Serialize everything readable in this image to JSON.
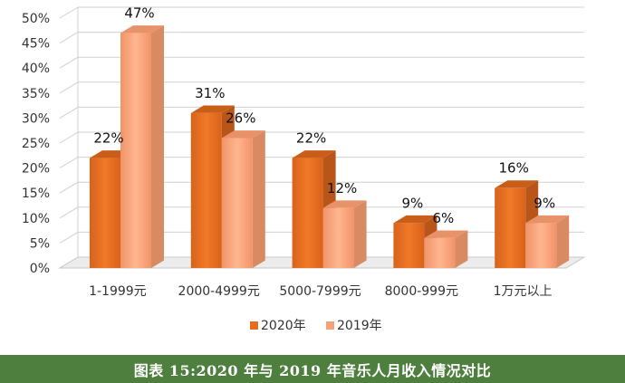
{
  "chart_data": {
    "type": "bar",
    "categories": [
      "1-1999元",
      "2000-4999元",
      "5000-7999元",
      "8000-999元",
      "1万元以上"
    ],
    "series": [
      {
        "name": "2020年",
        "values": [
          22,
          31,
          22,
          9,
          16
        ]
      },
      {
        "name": "2019年",
        "values": [
          47,
          26,
          12,
          6,
          9
        ]
      }
    ],
    "value_labels": {
      "2020年": [
        "22%",
        "31%",
        "22%",
        "9%",
        "16%"
      ],
      "2019年": [
        "47%",
        "26%",
        "12%",
        "6%",
        "9%"
      ]
    },
    "yticks": [
      "0%",
      "5%",
      "10%",
      "15%",
      "20%",
      "25%",
      "30%",
      "35%",
      "40%",
      "45%",
      "50%"
    ],
    "ylim": [
      0,
      50
    ],
    "grid": true,
    "legend_position": "bottom",
    "title": "",
    "xlabel": "",
    "ylabel": ""
  },
  "caption": "图表 15:2020 年与 2019 年音乐人月收入情况对比",
  "colors": {
    "series_2020": "#e66c1e",
    "series_2020_side": "#b8561a",
    "series_2020_top": "#c95e18",
    "series_2019": "#f4a27a",
    "series_2019_side": "#d98a62",
    "series_2019_top": "#e8926a",
    "grid": "#d0d0d0",
    "caption_bg": "#4e7f3e"
  }
}
